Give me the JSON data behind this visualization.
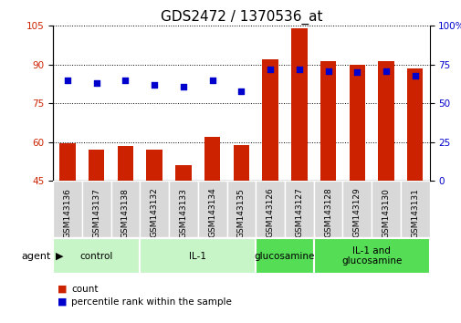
{
  "title": "GDS2472 / 1370536_at",
  "samples": [
    "GSM143136",
    "GSM143137",
    "GSM143138",
    "GSM143132",
    "GSM143133",
    "GSM143134",
    "GSM143135",
    "GSM143126",
    "GSM143127",
    "GSM143128",
    "GSM143129",
    "GSM143130",
    "GSM143131"
  ],
  "counts": [
    59.5,
    57.0,
    58.5,
    57.0,
    51.0,
    62.0,
    59.0,
    92.0,
    104.0,
    91.5,
    90.0,
    91.5,
    88.5
  ],
  "percentiles": [
    65,
    63,
    65,
    62,
    61,
    65,
    58,
    72,
    72,
    71,
    70,
    71,
    68
  ],
  "ylim_left": [
    45,
    105
  ],
  "ylim_right": [
    0,
    100
  ],
  "yticks_left": [
    45,
    60,
    75,
    90,
    105
  ],
  "yticks_right": [
    0,
    25,
    50,
    75,
    100
  ],
  "groups": [
    {
      "label": "control",
      "start": 0,
      "end": 3,
      "color": "#C8F5C8"
    },
    {
      "label": "IL-1",
      "start": 3,
      "end": 7,
      "color": "#C8F5C8"
    },
    {
      "label": "glucosamine",
      "start": 7,
      "end": 9,
      "color": "#55DD55"
    },
    {
      "label": "IL-1 and\nglucosamine",
      "start": 9,
      "end": 13,
      "color": "#55DD55"
    }
  ],
  "bar_color": "#CC2200",
  "point_color": "#0000CC",
  "bar_width": 0.55,
  "legend_count": "count",
  "legend_pct": "percentile rank within the sample",
  "title_fontsize": 11,
  "tick_fontsize": 7.5
}
